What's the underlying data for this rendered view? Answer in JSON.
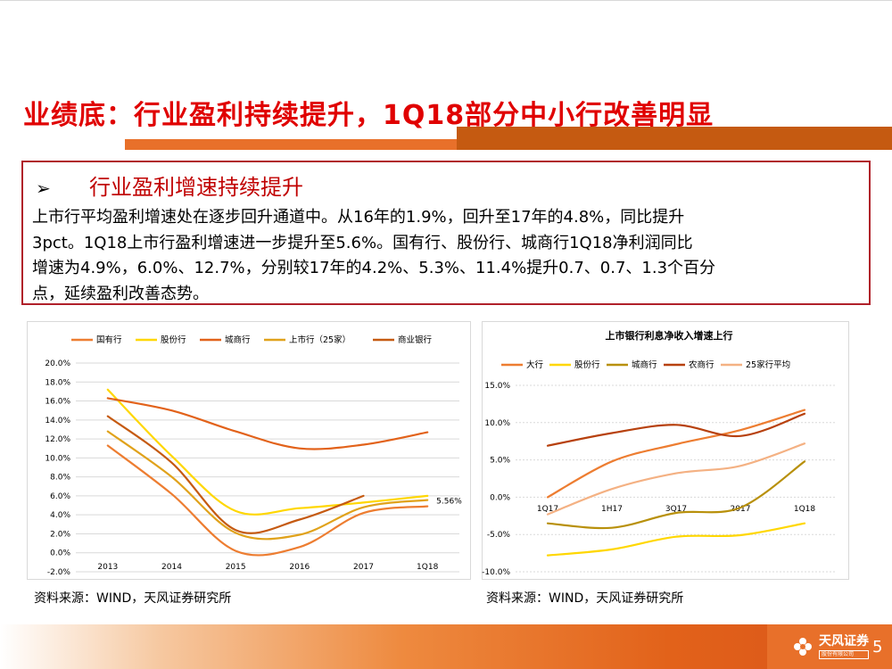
{
  "title": "业绩底：行业盈利持续提升，1Q18部分中小行改善明显",
  "summary": {
    "heading": "行业盈利增速持续提升",
    "lines": [
      "上市行平均盈利增速处在逐步回升通道中。从16年的1.9%，回升至17年的4.8%，同比提升",
      "3pct。1Q18上市行盈利增速进一步提升至5.6%。国有行、股份行、城商行1Q18净利润同比",
      "增速为4.9%，6.0%、12.7%，分别较17年的4.2%、5.3%、11.4%提升0.7、0.7、1.3个百分",
      "点，延续盈利改善态势。"
    ]
  },
  "source_left": "资料来源：WIND，天风证券研究所",
  "source_right": "资料来源：WIND，天风证券研究所",
  "footer": {
    "logo_name": "天风证券",
    "logo_sub": "股份有限公司",
    "page": "5"
  },
  "chart_data": [
    {
      "type": "line",
      "title": "",
      "categories": [
        "2013",
        "2014",
        "2015",
        "2016",
        "2017",
        "1Q18"
      ],
      "ylim": [
        -2.0,
        20.0
      ],
      "yticks": [
        "-2.0%",
        "0.0%",
        "2.0%",
        "4.0%",
        "6.0%",
        "8.0%",
        "10.0%",
        "12.0%",
        "14.0%",
        "16.0%",
        "18.0%",
        "20.0%"
      ],
      "annotation": "5.56%",
      "series": [
        {
          "name": "国有行",
          "color": "#ed7d31",
          "values": [
            11.3,
            6.2,
            0.2,
            0.6,
            4.2,
            4.9
          ]
        },
        {
          "name": "股份行",
          "color": "#ffd700",
          "values": [
            17.2,
            10.2,
            4.4,
            4.7,
            5.3,
            6.0
          ]
        },
        {
          "name": "城商行",
          "color": "#e2621a",
          "values": [
            16.3,
            15.0,
            12.8,
            11.0,
            11.4,
            12.7
          ]
        },
        {
          "name": "上市行（25家）",
          "color": "#e0a21b",
          "values": [
            12.8,
            8.0,
            2.1,
            1.9,
            4.8,
            5.56
          ]
        },
        {
          "name": "商业银行",
          "color": "#c55a11",
          "values": [
            14.4,
            9.5,
            2.4,
            3.5,
            6.0,
            null
          ]
        }
      ]
    },
    {
      "type": "line",
      "title": "上市银行利息净收入增速上行",
      "categories": [
        "1Q17",
        "1H17",
        "3Q17",
        "2017",
        "1Q18"
      ],
      "ylim": [
        -10.0,
        15.0
      ],
      "yticks": [
        "-10.0%",
        "-5.0%",
        "0.0%",
        "5.0%",
        "10.0%",
        "15.0%"
      ],
      "series": [
        {
          "name": "大行",
          "color": "#ed7d31",
          "values": [
            0.0,
            4.8,
            7.1,
            9.0,
            11.7
          ]
        },
        {
          "name": "股份行",
          "color": "#ffd700",
          "values": [
            -7.8,
            -7.0,
            -5.3,
            -5.1,
            -3.5
          ]
        },
        {
          "name": "城商行",
          "color": "#b8900b",
          "values": [
            -3.5,
            -4.1,
            -2.1,
            -1.4,
            4.8
          ]
        },
        {
          "name": "农商行",
          "color": "#b7410e",
          "values": [
            6.9,
            8.6,
            9.7,
            8.2,
            11.2
          ]
        },
        {
          "name": "25家行平均",
          "color": "#f4b183",
          "values": [
            -2.3,
            1.1,
            3.2,
            4.2,
            7.2
          ]
        }
      ]
    }
  ]
}
